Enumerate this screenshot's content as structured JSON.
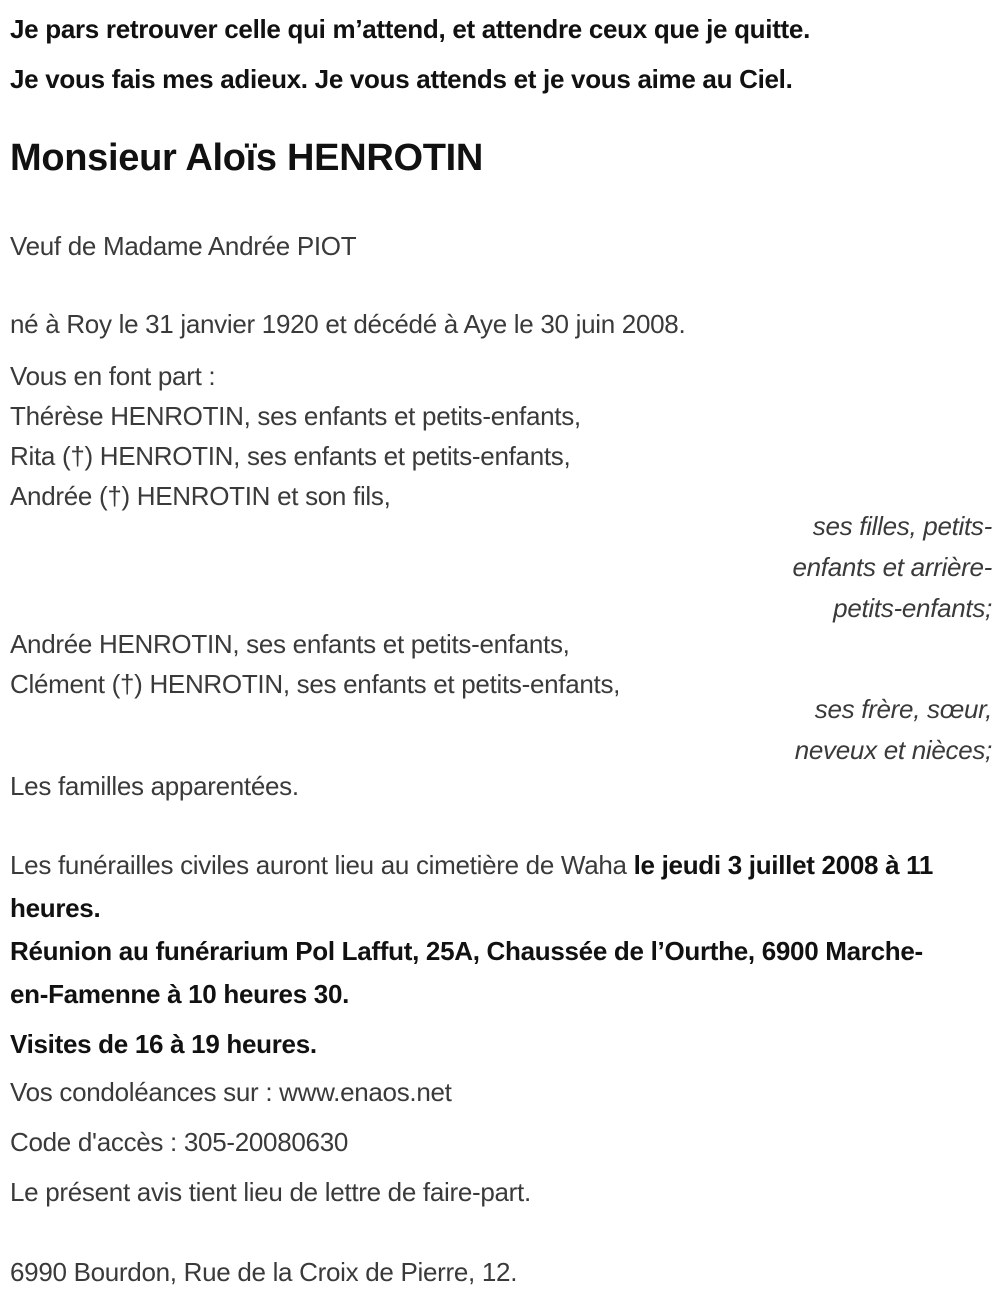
{
  "colors": {
    "background": "#ffffff",
    "text": "#3a3a3a",
    "emphasis": "#111111"
  },
  "notice": {
    "epigraph": [
      "Je pars retrouver celle qui m’attend, et attendre ceux que je quitte.",
      "Je vous fais mes adieux. Je vous attends et je vous aime au Ciel."
    ],
    "deceased_name": "Monsieur Aloïs HENROTIN",
    "spouse_line": "Veuf de Madame Andrée PIOT",
    "birth_death_line": "né à Roy le 31 janvier 1920 et décédé à Aye le 30 juin 2008.",
    "announcement_intro": "Vous en font part :",
    "family_group_1": [
      "Thérèse HENROTIN, ses enfants et petits-enfants,",
      "Rita (†) HENROTIN, ses enfants et petits-enfants,",
      "Andrée (†) HENROTIN et son fils,"
    ],
    "relation_caption_1": [
      "ses filles, petits-",
      "enfants et arrière-",
      "petits-enfants;"
    ],
    "family_group_2": [
      "Andrée HENROTIN, ses enfants et petits-enfants,",
      "Clément (†) HENROTIN, ses enfants et petits-enfants,"
    ],
    "relation_caption_2": [
      "ses frère, sœur,",
      "neveux et nièces;"
    ],
    "families_line": "Les familles apparentées.",
    "funeral_regular": "Les funérailles civiles auront lieu au cimetière de Waha ",
    "funeral_bold": "le jeudi 3 juillet 2008 à 11 heures.",
    "meeting_line": "Réunion au funérarium Pol Laffut, 25A, Chaussée de l’Ourthe, 6900 Marche-en-Famenne à 10 heures 30.",
    "visits_line": "Visites de 16 à 19 heures.",
    "condolences_line": "Vos condoléances sur : www.enaos.net",
    "access_code_line": "Code d'accès : 305-20080630",
    "legal_line": "Le présent avis tient lieu de lettre de faire-part.",
    "address_line": "6990 Bourdon, Rue de la Croix de Pierre, 12."
  }
}
